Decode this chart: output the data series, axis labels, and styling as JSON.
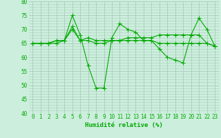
{
  "xlabel": "Humidité relative (%)",
  "background_color": "#cceedd",
  "grid_color": "#aaccbb",
  "line_color": "#00aa00",
  "xlim": [
    -0.5,
    23.5
  ],
  "ylim": [
    40,
    80
  ],
  "yticks": [
    40,
    45,
    50,
    55,
    60,
    65,
    70,
    75,
    80
  ],
  "xticks": [
    0,
    1,
    2,
    3,
    4,
    5,
    6,
    7,
    8,
    9,
    10,
    11,
    12,
    13,
    14,
    15,
    16,
    17,
    18,
    19,
    20,
    21,
    22,
    23
  ],
  "series": [
    [
      65,
      65,
      65,
      66,
      66,
      75,
      68,
      57,
      49,
      49,
      67,
      72,
      70,
      69,
      66,
      66,
      63,
      60,
      59,
      58,
      68,
      74,
      70,
      64
    ],
    [
      65,
      65,
      65,
      65,
      66,
      71,
      66,
      66,
      65,
      65,
      66,
      66,
      67,
      67,
      67,
      67,
      68,
      68,
      68,
      68,
      68,
      68,
      65,
      64
    ],
    [
      65,
      65,
      65,
      66,
      66,
      70,
      66,
      67,
      66,
      66,
      66,
      66,
      66,
      66,
      66,
      66,
      65,
      65,
      65,
      65,
      65,
      65,
      65,
      64
    ]
  ],
  "marker": "+",
  "markersize": 4,
  "linewidth": 0.8,
  "label_fontsize": 5.5,
  "xlabel_fontsize": 6.5,
  "tick_fontsize": 5.5
}
